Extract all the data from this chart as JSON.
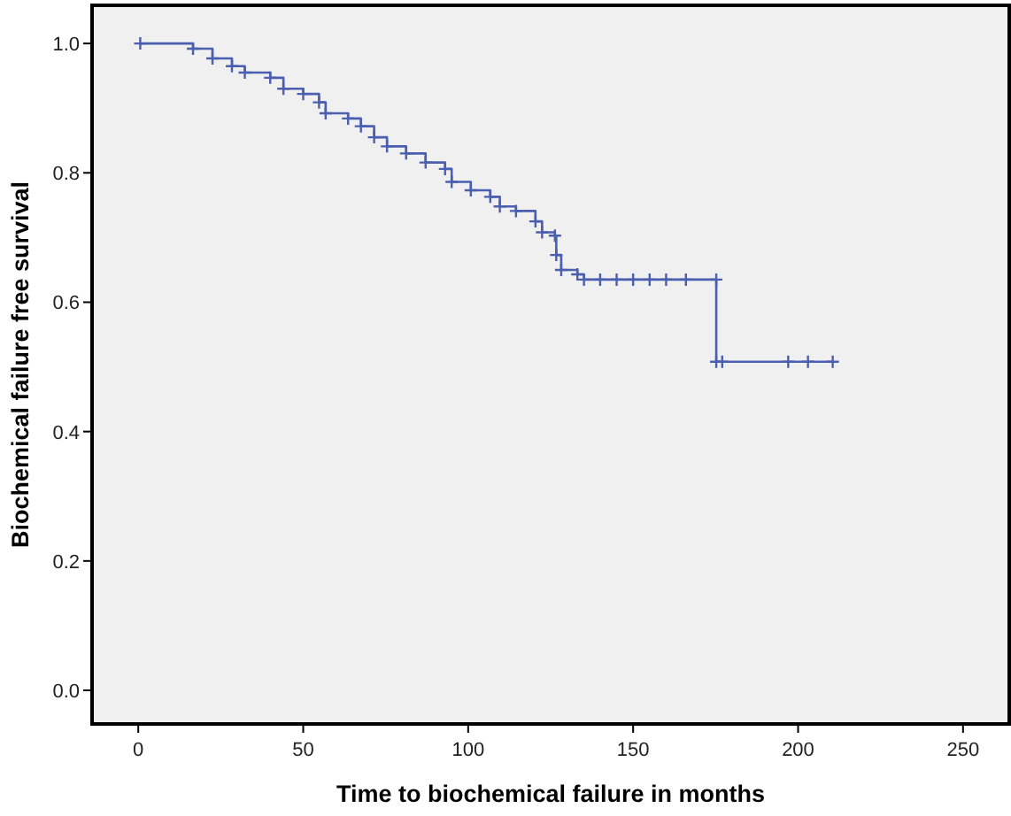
{
  "chart_data": {
    "type": "step",
    "xlabel": "Time to biochemical failure in months",
    "ylabel": "Biochemical failure free survival",
    "x": [
      0.6,
      16.6,
      22.5,
      28.4,
      32.3,
      40,
      44,
      50,
      54.8,
      56.8,
      63.6,
      67.5,
      71.5,
      75.4,
      81.2,
      87.1,
      93,
      95,
      100.8,
      106.7,
      109.6,
      114.5,
      120.4,
      122.4,
      126.3,
      126.7,
      128.2,
      133.1,
      135.1,
      140,
      145,
      150,
      155,
      160,
      166,
      175.2,
      175.2,
      177,
      197,
      203,
      210.5
    ],
    "series": [
      {
        "color": "#4a5fb0",
        "values": [
          1.0,
          0.992,
          0.977,
          0.965,
          0.955,
          0.947,
          0.93,
          0.922,
          0.909,
          0.892,
          0.884,
          0.872,
          0.855,
          0.841,
          0.83,
          0.816,
          0.806,
          0.786,
          0.773,
          0.763,
          0.748,
          0.741,
          0.725,
          0.708,
          0.703,
          0.673,
          0.65,
          0.643,
          0.635,
          0.635,
          0.635,
          0.635,
          0.635,
          0.635,
          0.635,
          0.635,
          0.508,
          0.508,
          0.508,
          0.508,
          0.508
        ]
      }
    ],
    "xlim": [
      -14,
      264
    ],
    "xticks": [
      0,
      50,
      100,
      150,
      200,
      250
    ],
    "ylim": [
      -0.052,
      1.059
    ],
    "yticks": [
      {
        "value": 0,
        "label": "0.0"
      },
      {
        "value": 0.2,
        "label": "0.2"
      },
      {
        "value": 0.4,
        "label": "0.4"
      },
      {
        "value": 0.6,
        "label": "0.6"
      },
      {
        "value": 0.8,
        "label": "0.8"
      },
      {
        "value": 1,
        "label": "1.0"
      }
    ],
    "marker": "cross"
  }
}
